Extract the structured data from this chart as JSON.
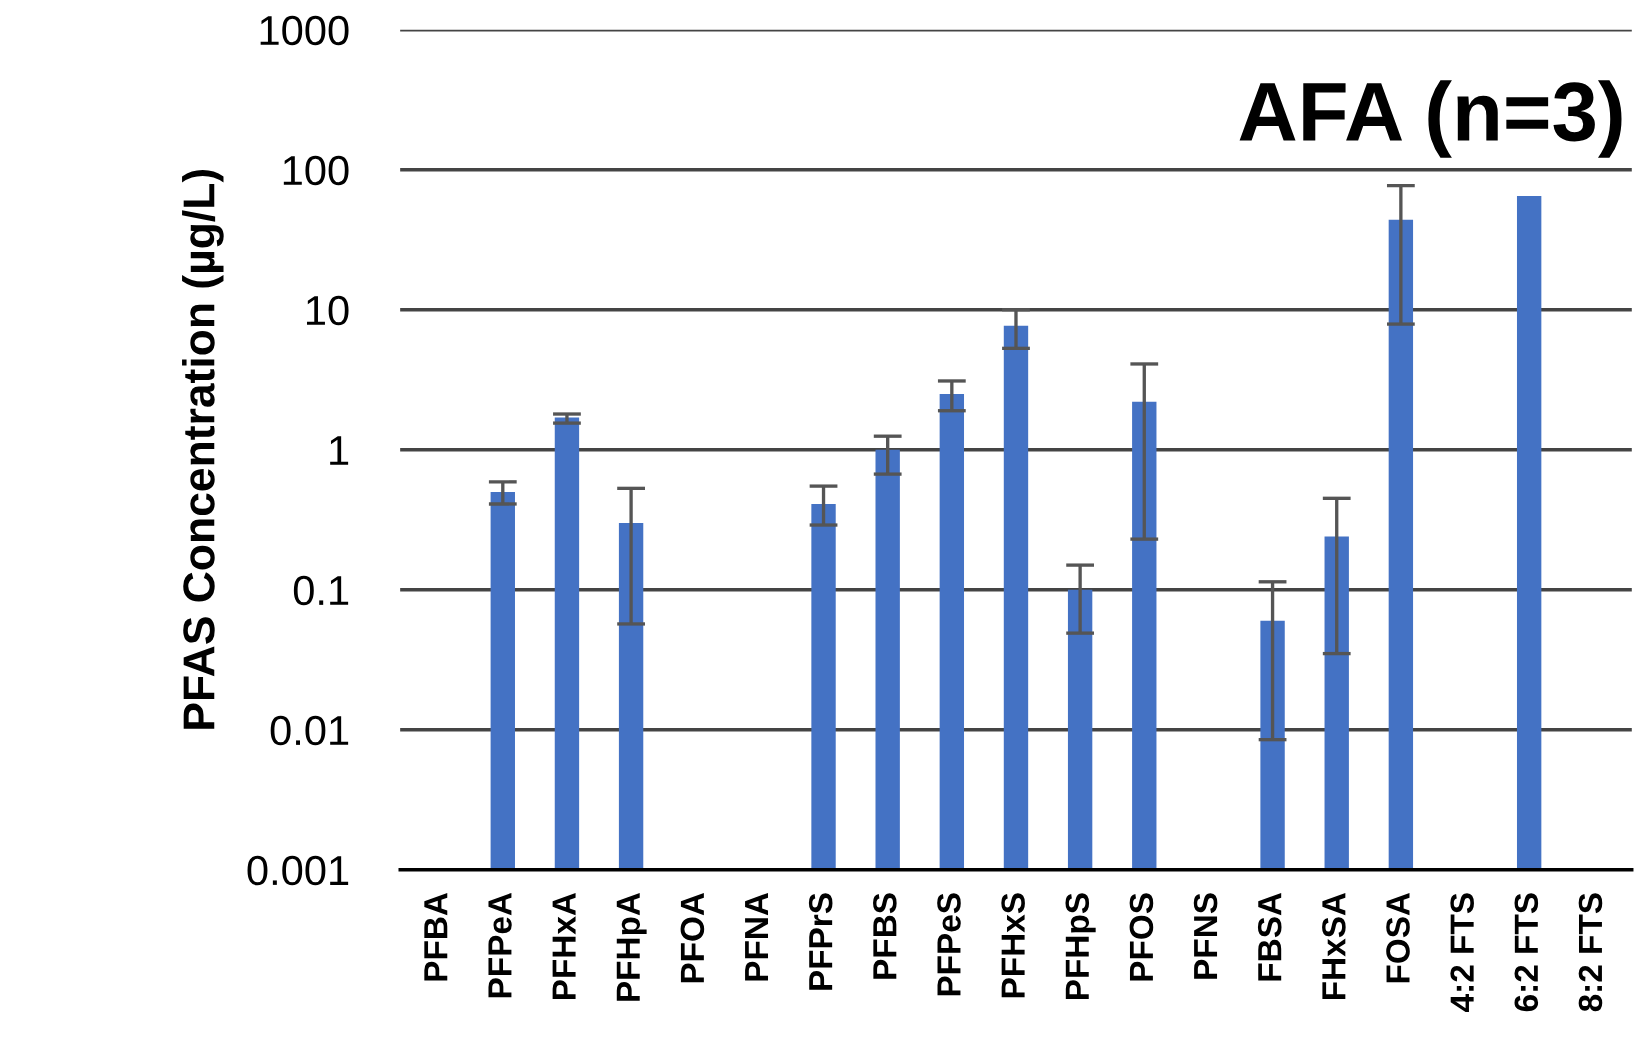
{
  "chart_data": {
    "type": "bar",
    "title": "AFA (n=3)",
    "ylabel": "PFAS Concentration (µg/L)",
    "categories": [
      "PFBA",
      "PFPeA",
      "PFHxA",
      "PFHpA",
      "PFOA",
      "PFNA",
      "PFPrS",
      "PFBS",
      "PFPeS",
      "PFHxS",
      "PFHpS",
      "PFOS",
      "PFNS",
      "FBSA",
      "FHxSA",
      "FOSA",
      "4:2 FTS",
      "6:2 FTS",
      "8:2 FTS"
    ],
    "values": [
      null,
      0.5,
      1.7,
      0.3,
      null,
      null,
      0.41,
      1.0,
      2.5,
      7.7,
      0.1,
      2.2,
      null,
      0.06,
      0.24,
      44,
      null,
      65,
      null
    ],
    "errors": [
      null,
      [
        0.41,
        0.59
      ],
      [
        1.55,
        1.8
      ],
      [
        0.057,
        0.53
      ],
      null,
      null,
      [
        0.29,
        0.55
      ],
      [
        0.67,
        1.25
      ],
      [
        1.9,
        3.1
      ],
      [
        5.3,
        10
      ],
      [
        0.049,
        0.15
      ],
      [
        0.23,
        4.1
      ],
      null,
      [
        0.0085,
        0.114
      ],
      [
        0.035,
        0.45
      ],
      [
        7.9,
        77
      ],
      null,
      null,
      null
    ],
    "color": "#4472c4",
    "log": "y",
    "ylim": [
      0.001,
      1000
    ],
    "yticks": [
      0.001,
      0.01,
      0.1,
      1,
      10,
      100,
      1000
    ],
    "grid": "y"
  }
}
